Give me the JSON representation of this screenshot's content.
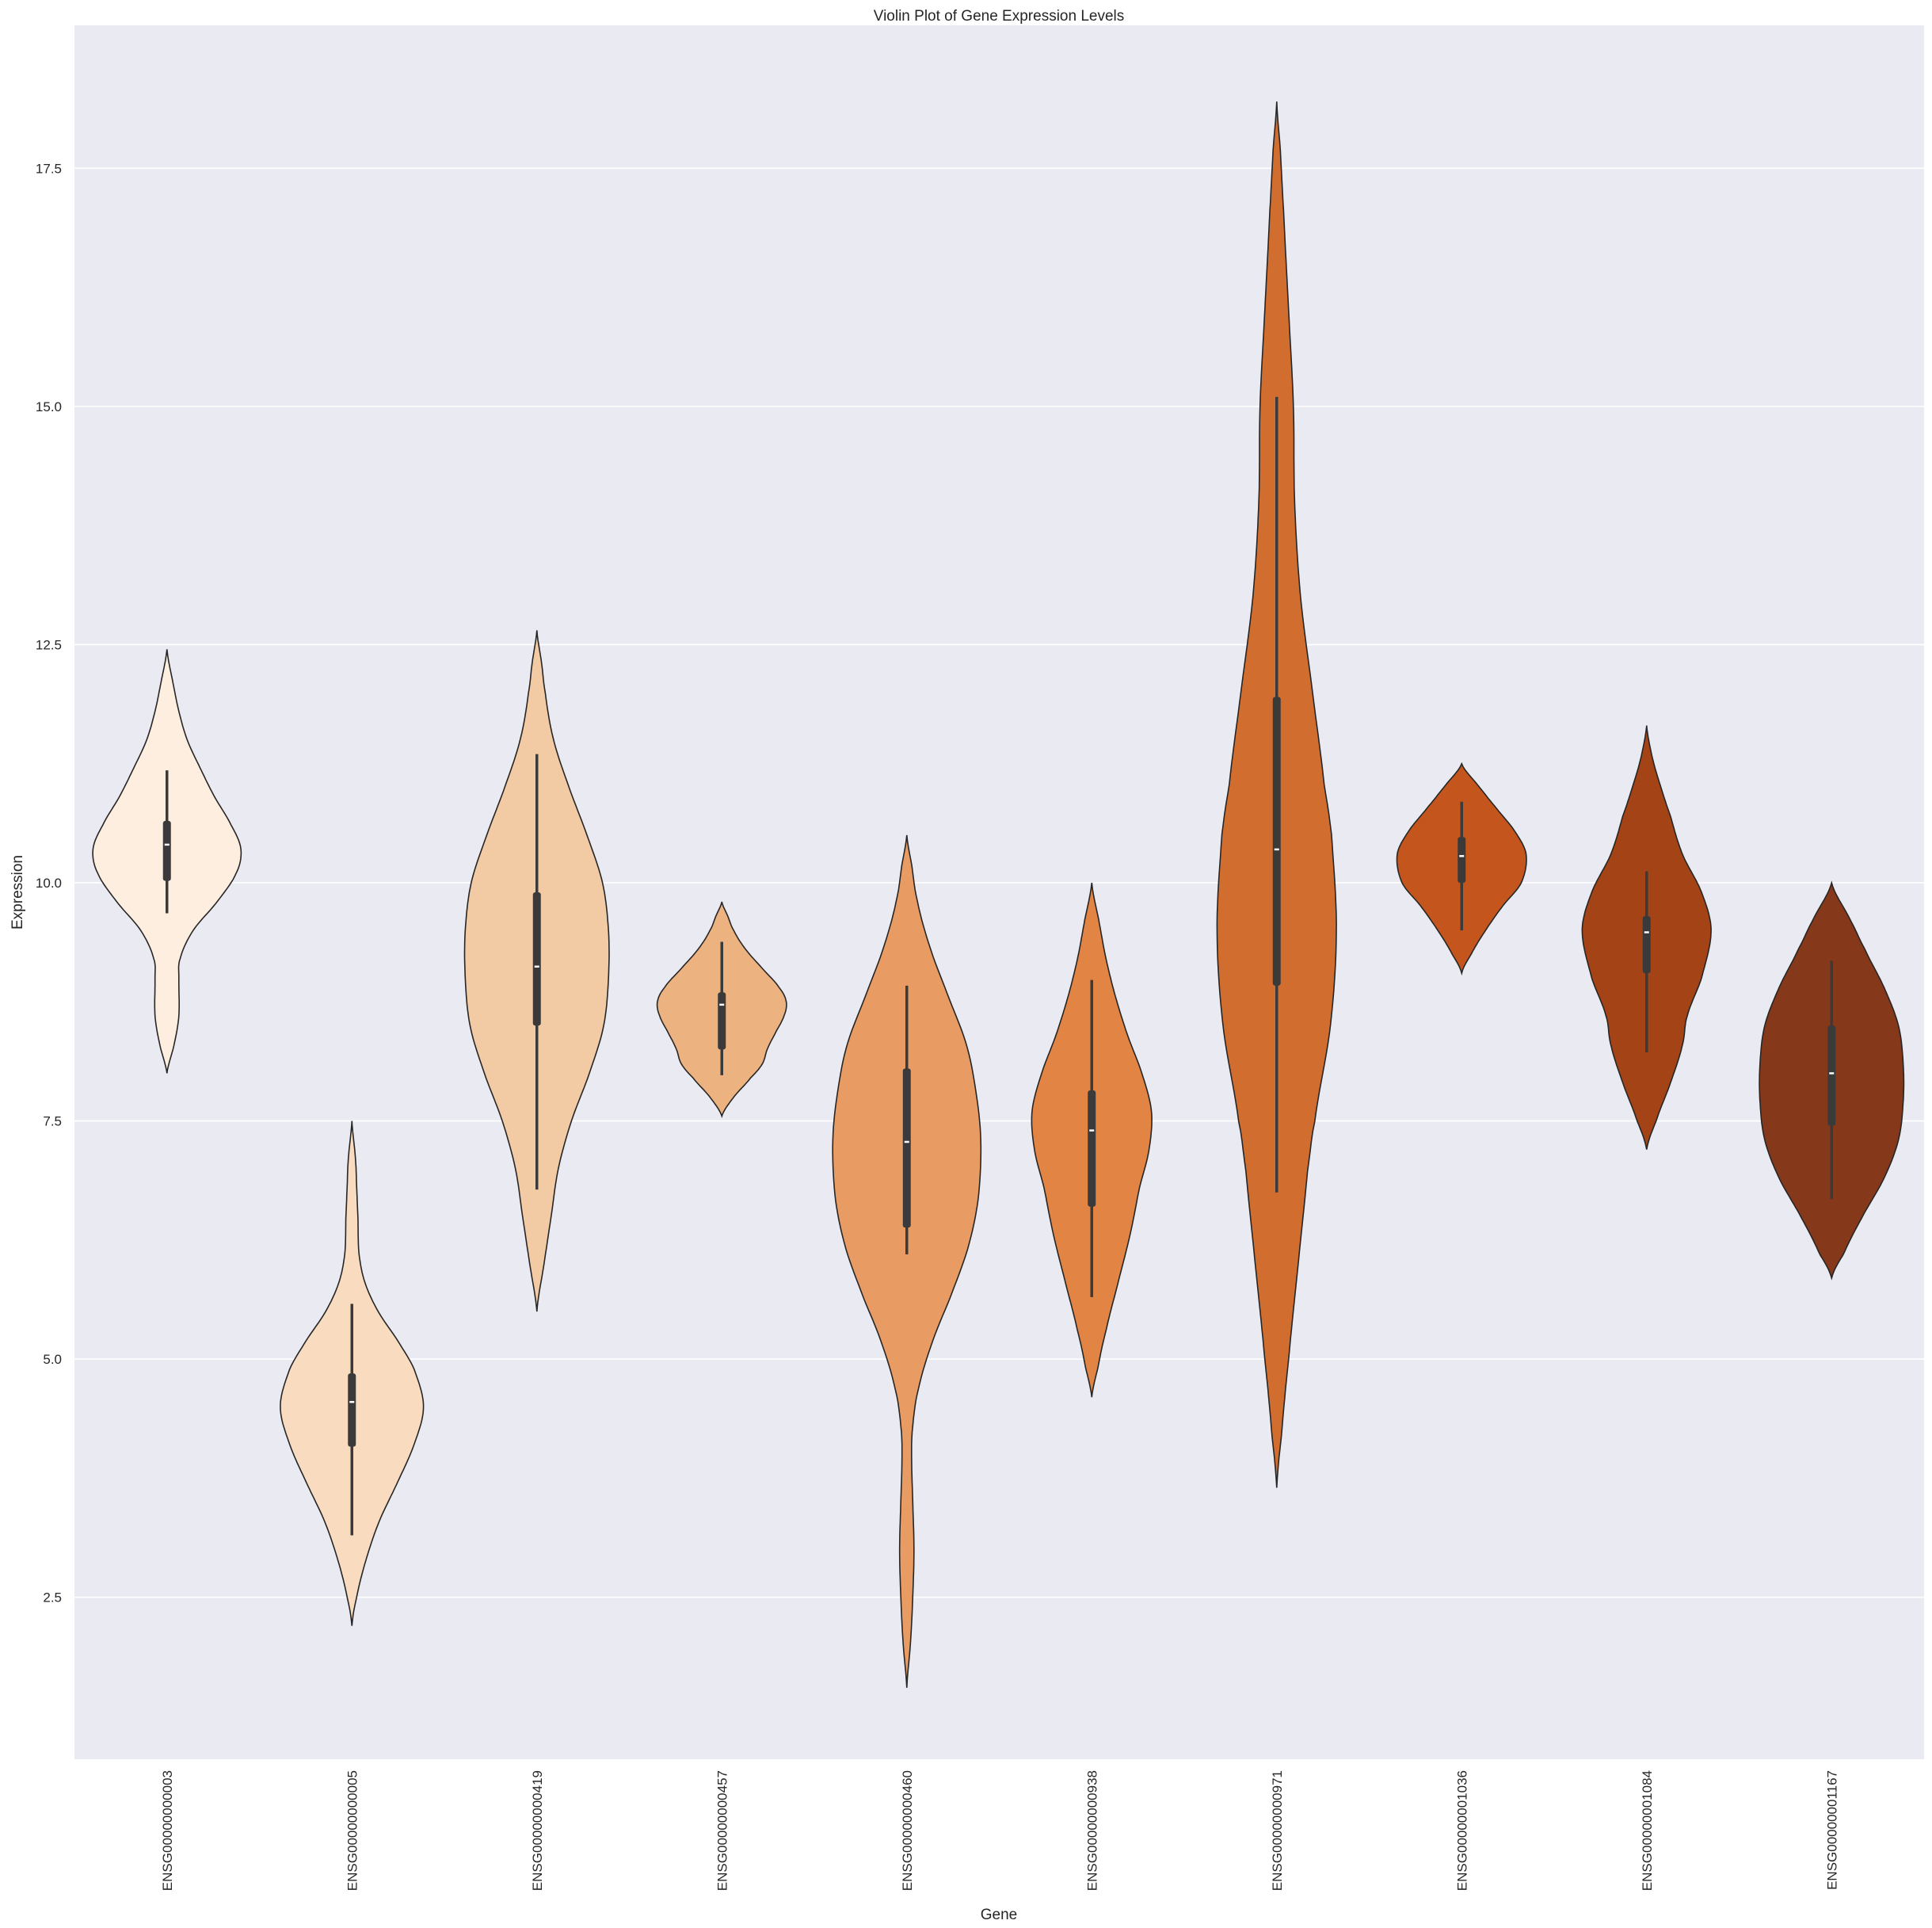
{
  "chart_data": {
    "type": "violin",
    "title": "Violin Plot of Gene Expression Levels",
    "xlabel": "Gene",
    "ylabel": "Expression",
    "ylim": [
      0.8,
      19.0
    ],
    "yticks": [
      "2.5",
      "5.0",
      "7.5",
      "10.0",
      "12.5",
      "15.0",
      "17.5"
    ],
    "grid": true,
    "legend": "none",
    "background_color": "#eaeaf2",
    "grid_color": "#ffffff",
    "categories": [
      "ENSG00000000003",
      "ENSG00000000005",
      "ENSG00000000419",
      "ENSG00000000457",
      "ENSG00000000460",
      "ENSG00000000938",
      "ENSG00000000971",
      "ENSG00000001036",
      "ENSG00000001084",
      "ENSG00000001167"
    ],
    "colors": [
      "#fdeee0",
      "#f9dcbf",
      "#f2ca a3",
      "#ecb27f",
      "#e89c63",
      "#e18444",
      "#d16e2f",
      "#c4561d",
      "#a44316",
      "#86381a"
    ],
    "violins": [
      {
        "min": 8.0,
        "max": 12.45,
        "median": 10.4,
        "q1": 10.02,
        "q3": 10.65,
        "whisker_low": 9.68,
        "whisker_high": 11.18,
        "profile": [
          [
            8.0,
            0
          ],
          [
            8.3,
            0.06
          ],
          [
            8.6,
            0.1
          ],
          [
            9.0,
            0.1
          ],
          [
            9.2,
            0.11
          ],
          [
            9.5,
            0.22
          ],
          [
            9.8,
            0.42
          ],
          [
            10.1,
            0.58
          ],
          [
            10.35,
            0.62
          ],
          [
            10.6,
            0.54
          ],
          [
            10.9,
            0.4
          ],
          [
            11.2,
            0.28
          ],
          [
            11.5,
            0.17
          ],
          [
            11.8,
            0.1
          ],
          [
            12.1,
            0.05
          ],
          [
            12.45,
            0
          ]
        ]
      },
      {
        "min": 2.2,
        "max": 7.5,
        "median": 4.55,
        "q1": 4.08,
        "q3": 4.85,
        "whisker_low": 3.15,
        "whisker_high": 5.58,
        "profile": [
          [
            2.2,
            0
          ],
          [
            2.5,
            0.04
          ],
          [
            2.9,
            0.12
          ],
          [
            3.3,
            0.23
          ],
          [
            3.7,
            0.38
          ],
          [
            4.1,
            0.52
          ],
          [
            4.5,
            0.6
          ],
          [
            4.9,
            0.52
          ],
          [
            5.2,
            0.38
          ],
          [
            5.5,
            0.22
          ],
          [
            5.8,
            0.11
          ],
          [
            6.1,
            0.06
          ],
          [
            6.5,
            0.05
          ],
          [
            6.8,
            0.04
          ],
          [
            7.1,
            0.03
          ],
          [
            7.5,
            0
          ]
        ]
      },
      {
        "min": 5.5,
        "max": 12.65,
        "median": 9.12,
        "q1": 8.5,
        "q3": 9.9,
        "whisker_low": 6.78,
        "whisker_high": 11.35,
        "profile": [
          [
            5.5,
            0
          ],
          [
            6.0,
            0.06
          ],
          [
            6.5,
            0.12
          ],
          [
            7.0,
            0.18
          ],
          [
            7.5,
            0.29
          ],
          [
            8.0,
            0.44
          ],
          [
            8.5,
            0.56
          ],
          [
            9.0,
            0.6
          ],
          [
            9.5,
            0.6
          ],
          [
            10.0,
            0.55
          ],
          [
            10.5,
            0.42
          ],
          [
            11.0,
            0.27
          ],
          [
            11.5,
            0.14
          ],
          [
            12.0,
            0.07
          ],
          [
            12.3,
            0.04
          ],
          [
            12.65,
            0
          ]
        ]
      },
      {
        "min": 7.55,
        "max": 9.8,
        "median": 8.72,
        "q1": 8.25,
        "q3": 8.85,
        "whisker_low": 7.98,
        "whisker_high": 9.38,
        "profile": [
          [
            7.55,
            0
          ],
          [
            7.75,
            0.1
          ],
          [
            7.95,
            0.24
          ],
          [
            8.1,
            0.34
          ],
          [
            8.25,
            0.38
          ],
          [
            8.4,
            0.44
          ],
          [
            8.6,
            0.52
          ],
          [
            8.75,
            0.54
          ],
          [
            8.9,
            0.48
          ],
          [
            9.1,
            0.34
          ],
          [
            9.3,
            0.2
          ],
          [
            9.5,
            0.1
          ],
          [
            9.65,
            0.05
          ],
          [
            9.8,
            0
          ]
        ]
      },
      {
        "min": 1.55,
        "max": 10.5,
        "median": 7.28,
        "q1": 6.38,
        "q3": 8.05,
        "whisker_low": 6.1,
        "whisker_high": 8.92,
        "profile": [
          [
            1.55,
            0
          ],
          [
            2.0,
            0.03
          ],
          [
            2.5,
            0.05
          ],
          [
            3.0,
            0.06
          ],
          [
            3.5,
            0.05
          ],
          [
            4.0,
            0.04
          ],
          [
            4.3,
            0.05
          ],
          [
            4.7,
            0.1
          ],
          [
            5.2,
            0.22
          ],
          [
            5.7,
            0.38
          ],
          [
            6.2,
            0.52
          ],
          [
            6.7,
            0.6
          ],
          [
            7.3,
            0.62
          ],
          [
            7.8,
            0.58
          ],
          [
            8.3,
            0.5
          ],
          [
            8.8,
            0.35
          ],
          [
            9.3,
            0.2
          ],
          [
            9.8,
            0.09
          ],
          [
            10.2,
            0.04
          ],
          [
            10.5,
            0
          ]
        ]
      },
      {
        "min": 4.6,
        "max": 10.0,
        "median": 7.4,
        "q1": 6.6,
        "q3": 7.82,
        "whisker_low": 5.65,
        "whisker_high": 8.98,
        "profile": [
          [
            4.6,
            0
          ],
          [
            4.9,
            0.05
          ],
          [
            5.3,
            0.12
          ],
          [
            5.8,
            0.22
          ],
          [
            6.3,
            0.32
          ],
          [
            6.8,
            0.4
          ],
          [
            7.2,
            0.48
          ],
          [
            7.6,
            0.5
          ],
          [
            8.0,
            0.42
          ],
          [
            8.4,
            0.3
          ],
          [
            8.8,
            0.2
          ],
          [
            9.2,
            0.12
          ],
          [
            9.6,
            0.06
          ],
          [
            10.0,
            0
          ]
        ]
      },
      {
        "min": 3.65,
        "max": 18.2,
        "median": 10.35,
        "q1": 8.92,
        "q3": 11.95,
        "whisker_low": 6.75,
        "whisker_high": 15.1,
        "profile": [
          [
            3.65,
            0
          ],
          [
            4.2,
            0.04
          ],
          [
            5.0,
            0.1
          ],
          [
            6.0,
            0.18
          ],
          [
            7.0,
            0.26
          ],
          [
            7.5,
            0.32
          ],
          [
            8.5,
            0.45
          ],
          [
            9.5,
            0.5
          ],
          [
            10.5,
            0.46
          ],
          [
            11.0,
            0.4
          ],
          [
            12.0,
            0.3
          ],
          [
            13.0,
            0.2
          ],
          [
            14.0,
            0.15
          ],
          [
            15.0,
            0.14
          ],
          [
            16.0,
            0.1
          ],
          [
            17.0,
            0.06
          ],
          [
            17.7,
            0.03
          ],
          [
            18.2,
            0
          ]
        ]
      },
      {
        "min": 9.05,
        "max": 11.25,
        "median": 10.28,
        "q1": 10.0,
        "q3": 10.48,
        "whisker_low": 9.5,
        "whisker_high": 10.85,
        "profile": [
          [
            9.05,
            0
          ],
          [
            9.25,
            0.08
          ],
          [
            9.5,
            0.2
          ],
          [
            9.75,
            0.34
          ],
          [
            10.0,
            0.5
          ],
          [
            10.3,
            0.54
          ],
          [
            10.55,
            0.44
          ],
          [
            10.8,
            0.28
          ],
          [
            11.0,
            0.15
          ],
          [
            11.25,
            0
          ]
        ]
      },
      {
        "min": 7.2,
        "max": 11.65,
        "median": 9.48,
        "q1": 9.05,
        "q3": 9.65,
        "whisker_low": 8.22,
        "whisker_high": 10.12,
        "profile": [
          [
            7.2,
            0
          ],
          [
            7.5,
            0.08
          ],
          [
            7.9,
            0.2
          ],
          [
            8.3,
            0.3
          ],
          [
            8.6,
            0.34
          ],
          [
            9.0,
            0.46
          ],
          [
            9.5,
            0.54
          ],
          [
            9.9,
            0.46
          ],
          [
            10.3,
            0.3
          ],
          [
            10.7,
            0.2
          ],
          [
            11.0,
            0.12
          ],
          [
            11.3,
            0.05
          ],
          [
            11.65,
            0
          ]
        ]
      },
      {
        "min": 5.85,
        "max": 10.0,
        "median": 8.0,
        "q1": 7.45,
        "q3": 8.5,
        "whisker_low": 6.68,
        "whisker_high": 9.18,
        "profile": [
          [
            5.85,
            0
          ],
          [
            6.1,
            0.1
          ],
          [
            6.5,
            0.26
          ],
          [
            6.9,
            0.44
          ],
          [
            7.3,
            0.56
          ],
          [
            7.7,
            0.6
          ],
          [
            8.1,
            0.6
          ],
          [
            8.5,
            0.56
          ],
          [
            8.9,
            0.44
          ],
          [
            9.3,
            0.28
          ],
          [
            9.6,
            0.16
          ],
          [
            10.0,
            0
          ]
        ]
      }
    ]
  }
}
